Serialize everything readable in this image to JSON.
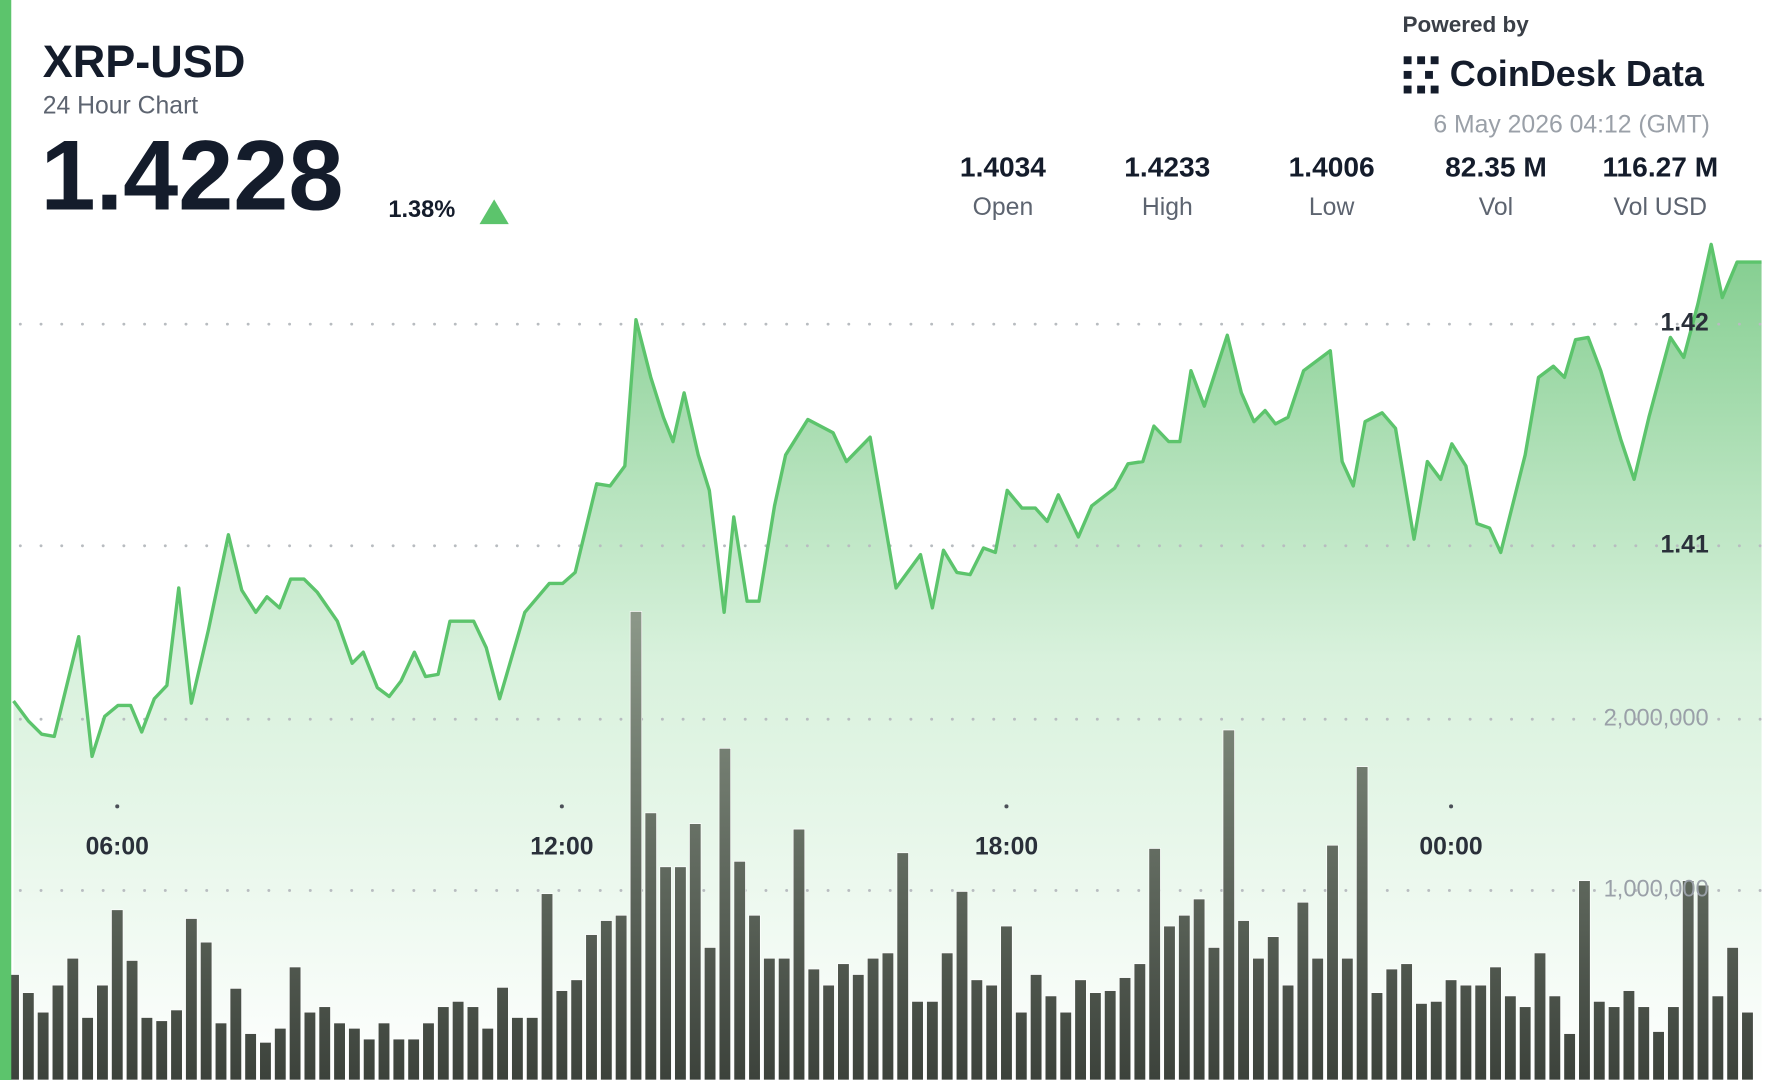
{
  "header": {
    "symbol": "XRP-USD",
    "subtitle": "24 Hour Chart",
    "price": "1.4228",
    "change": "1.38%",
    "powered_by": "Powered by",
    "brand": "CoinDesk Data",
    "timestamp": "6 May 2026 04:12 (GMT)",
    "stats": [
      {
        "value": "1.4034",
        "label": "Open"
      },
      {
        "value": "1.4233",
        "label": "High"
      },
      {
        "value": "1.4006",
        "label": "Low"
      },
      {
        "value": "82.35 M",
        "label": "Vol"
      },
      {
        "value": "116.27 M",
        "label": "Vol USD"
      }
    ]
  },
  "chart_data": {
    "type": "line",
    "grid": true,
    "xlim": [
      4.6,
      28.2
    ],
    "xticks": [
      {
        "value": 6,
        "label": "06:00"
      },
      {
        "value": 12,
        "label": "12:00"
      },
      {
        "value": 18,
        "label": "18:00"
      },
      {
        "value": 24,
        "label": "00:00"
      }
    ],
    "ylim": [
      1.3859,
      1.4237
    ],
    "yticks": [
      1.41,
      1.42
    ],
    "y2lim": [
      -107000,
      4786000
    ],
    "y2ticks": [
      {
        "value": 1000000,
        "label": "1,000,000"
      },
      {
        "value": 2000000,
        "label": "2,000,000"
      }
    ],
    "series": [
      {
        "type": "line",
        "color": "#5cc46c",
        "x": [
          4.6,
          4.8,
          4.98,
          5.15,
          5.48,
          5.66,
          5.83,
          6.01,
          6.18,
          6.33,
          6.5,
          6.67,
          6.83,
          7,
          7.23,
          7.5,
          7.68,
          7.87,
          8.02,
          8.19,
          8.34,
          8.52,
          8.7,
          8.97,
          9.17,
          9.32,
          9.51,
          9.67,
          9.83,
          10.01,
          10.16,
          10.33,
          10.49,
          10.81,
          10.98,
          11.16,
          11.5,
          11.83,
          12.01,
          12.18,
          12.47,
          12.65,
          12.85,
          13,
          13.2,
          13.37,
          13.5,
          13.65,
          13.84,
          13.99,
          14.19,
          14.32,
          14.5,
          14.66,
          14.87,
          15.02,
          15.32,
          15.66,
          15.84,
          16.16,
          16.51,
          16.84,
          17,
          17.15,
          17.33,
          17.51,
          17.69,
          17.85,
          18.01,
          18.21,
          18.39,
          18.55,
          18.7,
          18.97,
          19.15,
          19.46,
          19.64,
          19.84,
          19.99,
          20.19,
          20.34,
          20.49,
          20.67,
          20.98,
          21.17,
          21.34,
          21.49,
          21.63,
          21.8,
          22.01,
          22.37,
          22.53,
          22.68,
          22.84,
          23.07,
          23.25,
          23.5,
          23.68,
          23.86,
          24.01,
          24.2,
          24.35,
          24.52,
          24.67,
          25,
          25.18,
          25.38,
          25.53,
          25.68,
          25.85,
          26.02,
          26.29,
          26.47,
          26.67,
          26.96,
          27.14,
          27.33,
          27.51,
          27.66,
          27.86,
          28.19
        ],
        "values": [
          1.403,
          1.4021,
          1.4015,
          1.4014,
          1.4059,
          1.4005,
          1.4023,
          1.4028,
          1.4028,
          1.4016,
          1.4031,
          1.4037,
          1.4081,
          1.4029,
          1.4062,
          1.4105,
          1.408,
          1.407,
          1.4077,
          1.4072,
          1.4085,
          1.4085,
          1.4079,
          1.4066,
          1.4047,
          1.4052,
          1.4036,
          1.4032,
          1.4039,
          1.4052,
          1.4041,
          1.4042,
          1.4066,
          1.4066,
          1.4054,
          1.4031,
          1.407,
          1.4083,
          1.4083,
          1.4088,
          1.4128,
          1.4127,
          1.4136,
          1.4202,
          1.4176,
          1.4158,
          1.4147,
          1.4169,
          1.4141,
          1.4125,
          1.407,
          1.4113,
          1.4075,
          1.4075,
          1.4118,
          1.4141,
          1.4157,
          1.4151,
          1.4138,
          1.4149,
          1.4081,
          1.4096,
          1.4072,
          1.4098,
          1.4088,
          1.4087,
          1.4099,
          1.4097,
          1.4125,
          1.4117,
          1.4117,
          1.4111,
          1.4123,
          1.4104,
          1.4118,
          1.4126,
          1.4137,
          1.4138,
          1.4154,
          1.4147,
          1.4147,
          1.4179,
          1.4163,
          1.4195,
          1.4169,
          1.4156,
          1.4161,
          1.4155,
          1.4158,
          1.4179,
          1.4188,
          1.4138,
          1.4127,
          1.4156,
          1.416,
          1.4153,
          1.4103,
          1.4138,
          1.413,
          1.4146,
          1.4136,
          1.411,
          1.4108,
          1.4097,
          1.4141,
          1.4176,
          1.4181,
          1.4176,
          1.4193,
          1.4194,
          1.4179,
          1.4148,
          1.413,
          1.4158,
          1.4194,
          1.4185,
          1.4209,
          1.4236,
          1.4212,
          1.4228,
          1.4228
        ]
      },
      {
        "type": "bar",
        "axis": "y2",
        "color": "#6b7568",
        "x": [
          4.6,
          4.8,
          5,
          5.2,
          5.4,
          5.6,
          5.8,
          6,
          6.2,
          6.4,
          6.6,
          6.8,
          7,
          7.2,
          7.4,
          7.6,
          7.8,
          8,
          8.2,
          8.4,
          8.6,
          8.8,
          9,
          9.2,
          9.4,
          9.6,
          9.8,
          10,
          10.2,
          10.4,
          10.6,
          10.8,
          11,
          11.2,
          11.4,
          11.6,
          11.8,
          12,
          12.2,
          12.4,
          12.6,
          12.8,
          13,
          13.2,
          13.4,
          13.6,
          13.8,
          14,
          14.2,
          14.4,
          14.6,
          14.8,
          15,
          15.2,
          15.4,
          15.6,
          15.8,
          16,
          16.2,
          16.4,
          16.6,
          16.8,
          17,
          17.2,
          17.4,
          17.6,
          17.8,
          18,
          18.2,
          18.4,
          18.6,
          18.8,
          19,
          19.2,
          19.4,
          19.6,
          19.8,
          20,
          20.2,
          20.4,
          20.6,
          20.8,
          21,
          21.2,
          21.4,
          21.6,
          21.8,
          22,
          22.2,
          22.4,
          22.6,
          22.8,
          23,
          23.2,
          23.4,
          23.6,
          23.8,
          24,
          24.2,
          24.4,
          24.6,
          24.8,
          25,
          25.2,
          25.4,
          25.6,
          25.8,
          26,
          26.2,
          26.4,
          26.6,
          26.8,
          27,
          27.2,
          27.4,
          27.6,
          27.8,
          28
        ],
        "values": [
          509000,
          403000,
          289000,
          447000,
          604000,
          258000,
          447000,
          887000,
          591000,
          258000,
          239000,
          302000,
          836000,
          698000,
          226000,
          428000,
          164000,
          113000,
          195000,
          553000,
          289000,
          321000,
          226000,
          195000,
          132000,
          226000,
          132000,
          132000,
          226000,
          321000,
          352000,
          321000,
          195000,
          434000,
          258000,
          258000,
          981000,
          415000,
          478000,
          742000,
          824000,
          855000,
          2629000,
          1453000,
          1138000,
          1138000,
          1390000,
          667000,
          1830000,
          1170000,
          855000,
          604000,
          604000,
          1358000,
          541000,
          447000,
          572000,
          509000,
          604000,
          635000,
          1220000,
          352000,
          352000,
          635000,
          994000,
          478000,
          447000,
          792000,
          289000,
          509000,
          384000,
          289000,
          478000,
          403000,
          415000,
          491000,
          572000,
          1245000,
          792000,
          855000,
          950000,
          667000,
          1937000,
          824000,
          604000,
          730000,
          447000,
          931000,
          604000,
          1264000,
          604000,
          1723000,
          403000,
          541000,
          572000,
          340000,
          352000,
          478000,
          447000,
          447000,
          553000,
          384000,
          321000,
          635000,
          384000,
          164000,
          1057000,
          352000,
          321000,
          415000,
          321000,
          176000,
          321000,
          1057000,
          1031000,
          384000,
          667000,
          289000
        ]
      }
    ]
  }
}
